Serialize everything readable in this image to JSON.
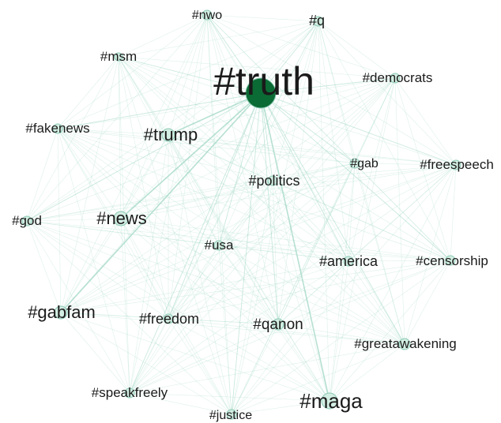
{
  "graph": {
    "hub": "truth",
    "nodes": [
      {
        "id": "truth",
        "label": "#truth",
        "weight": 100
      },
      {
        "id": "nwo",
        "label": "#nwo",
        "weight": 8
      },
      {
        "id": "q",
        "label": "#q",
        "weight": 10
      },
      {
        "id": "msm",
        "label": "#msm",
        "weight": 8
      },
      {
        "id": "democrats",
        "label": "#democrats",
        "weight": 9
      },
      {
        "id": "fakenews",
        "label": "#fakenews",
        "weight": 8
      },
      {
        "id": "trump",
        "label": "#trump",
        "weight": 22
      },
      {
        "id": "gab",
        "label": "#gab",
        "weight": 10
      },
      {
        "id": "freespeech",
        "label": "#freespeech",
        "weight": 9
      },
      {
        "id": "politics",
        "label": "#politics",
        "weight": 12
      },
      {
        "id": "god",
        "label": "#god",
        "weight": 8
      },
      {
        "id": "news",
        "label": "#news",
        "weight": 20
      },
      {
        "id": "usa",
        "label": "#usa",
        "weight": 9
      },
      {
        "id": "america",
        "label": "#america",
        "weight": 11
      },
      {
        "id": "censorship",
        "label": "#censorship",
        "weight": 9
      },
      {
        "id": "gabfam",
        "label": "#gabfam",
        "weight": 24
      },
      {
        "id": "freedom",
        "label": "#freedom",
        "weight": 12
      },
      {
        "id": "qanon",
        "label": "#qanon",
        "weight": 14
      },
      {
        "id": "greatawakening",
        "label": "#greatawakening",
        "weight": 10
      },
      {
        "id": "speakfreely",
        "label": "#speakfreely",
        "weight": 11
      },
      {
        "id": "maga",
        "label": "#maga",
        "weight": 30
      },
      {
        "id": "justice",
        "label": "#justice",
        "weight": 8
      }
    ]
  },
  "colors": {
    "hub_node": "#0b6b34",
    "node_fill": "#d3eee3",
    "edge": "#9fd6c4",
    "hub_edge": "#5fae8f"
  }
}
